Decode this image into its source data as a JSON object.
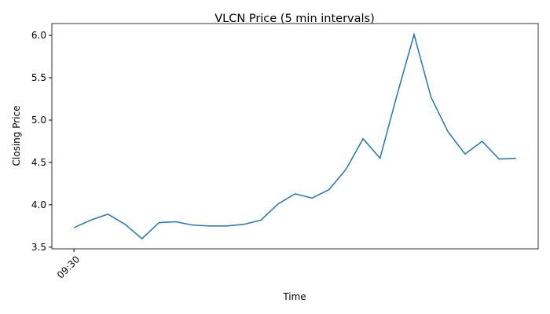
{
  "chart_data": {
    "type": "line",
    "title": "VLCN Price (5 min intervals)",
    "xlabel": "Time",
    "ylabel": "Closing Price",
    "categories": [
      "09:30",
      null,
      null,
      null,
      null,
      null,
      null,
      null,
      null,
      null,
      null,
      null,
      null,
      null,
      null,
      null,
      null,
      null,
      null,
      null,
      null,
      null,
      null,
      null,
      null,
      null,
      null
    ],
    "series": [
      {
        "name": "VLCN",
        "color": "#1f77b4",
        "values": [
          3.73,
          3.82,
          3.89,
          3.77,
          3.6,
          3.79,
          3.8,
          3.76,
          3.75,
          3.75,
          3.77,
          3.82,
          4.01,
          4.13,
          4.08,
          4.18,
          4.42,
          4.78,
          4.55,
          5.3,
          6.01,
          5.27,
          4.86,
          4.6,
          4.75,
          4.54,
          4.55
        ]
      }
    ],
    "ylim": [
      3.48,
      6.14
    ],
    "yticks": [
      {
        "value": 3.5,
        "label": "3.5"
      },
      {
        "value": 4.0,
        "label": "4.0"
      },
      {
        "value": 4.5,
        "label": "4.5"
      },
      {
        "value": 5.0,
        "label": "5.0"
      },
      {
        "value": 5.5,
        "label": "5.5"
      },
      {
        "value": 6.0,
        "label": "6.0"
      }
    ],
    "grid": false
  }
}
